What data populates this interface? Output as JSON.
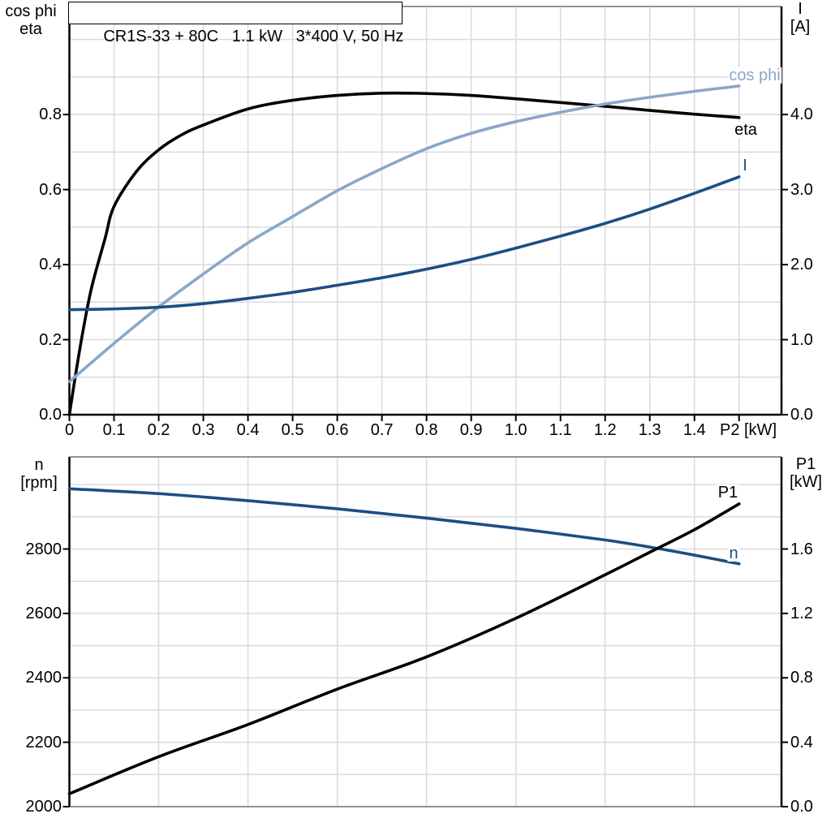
{
  "title_box": {
    "text": "CR1S-33 + 80C   1.1 kW   3*400 V, 50 Hz"
  },
  "colors": {
    "black": "#000000",
    "light_blue": "#8aa7c7",
    "dark_blue": "#1c4f82",
    "grid": "#d8dadc",
    "frame": "#8f9499"
  },
  "top_plot": {
    "left_axis_title_line1": "cos phi",
    "left_axis_title_line2": "eta",
    "right_axis_title_line1": "I",
    "right_axis_title_line2": "[A]",
    "x_axis_title": "P2 [kW]",
    "x_tick_labels": [
      "0",
      "0.1",
      "0.2",
      "0.3",
      "0.4",
      "0.5",
      "0.6",
      "0.7",
      "0.8",
      "0.9",
      "1.0",
      "1.1",
      "1.2",
      "1.3",
      "1.4"
    ],
    "left_tick_labels": [
      "0.0",
      "0.2",
      "0.4",
      "0.6",
      "0.8"
    ],
    "right_tick_labels": [
      "0.0",
      "1.0",
      "2.0",
      "3.0",
      "4.0"
    ],
    "curve_labels": {
      "cos_phi": "cos phi",
      "eta": "eta",
      "current": "I"
    }
  },
  "bottom_plot": {
    "left_axis_title_line1": "n",
    "left_axis_title_line2": "[rpm]",
    "right_axis_title_line1": "P1",
    "right_axis_title_line2": "[kW]",
    "left_tick_labels": [
      "2000",
      "2200",
      "2400",
      "2600",
      "2800"
    ],
    "right_tick_labels": [
      "0.0",
      "0.4",
      "0.8",
      "1.2",
      "1.6"
    ],
    "curve_labels": {
      "p1": "P1",
      "n": "n"
    }
  },
  "chart_data": [
    {
      "type": "line",
      "subplot": "top",
      "title": "CR1S-33 + 80C   1.1 kW   3*400 V, 50 Hz",
      "xlabel": "P2 [kW]",
      "ylabel_left": "cos phi / eta",
      "ylabel_right": "I [A]",
      "xlim": [
        0,
        1.595
      ],
      "ylim_left": [
        0,
        1.088
      ],
      "ylim_right": [
        0,
        5.44
      ],
      "x_ticks": [
        0,
        0.1,
        0.2,
        0.3,
        0.4,
        0.5,
        0.6,
        0.7,
        0.8,
        0.9,
        1.0,
        1.1,
        1.2,
        1.3,
        1.4
      ],
      "x_grid_step": 0.1,
      "x_grid_max": 1.5,
      "y_left_ticks": [
        0,
        0.2,
        0.4,
        0.6,
        0.8
      ],
      "y_right_ticks": [
        0,
        1,
        2,
        3,
        4
      ],
      "y_grid_step_left": 0.1,
      "grid": true,
      "legend_position": "inline-right",
      "series": [
        {
          "name": "eta",
          "axis": "left",
          "color": "black",
          "points": [
            [
              0,
              0
            ],
            [
              0.013,
              0.1
            ],
            [
              0.03,
              0.22
            ],
            [
              0.05,
              0.34
            ],
            [
              0.08,
              0.47
            ],
            [
              0.1,
              0.555
            ],
            [
              0.15,
              0.648
            ],
            [
              0.2,
              0.706
            ],
            [
              0.25,
              0.745
            ],
            [
              0.3,
              0.772
            ],
            [
              0.4,
              0.815
            ],
            [
              0.5,
              0.838
            ],
            [
              0.6,
              0.851
            ],
            [
              0.7,
              0.857
            ],
            [
              0.8,
              0.856
            ],
            [
              0.9,
              0.851
            ],
            [
              1.0,
              0.842
            ],
            [
              1.1,
              0.832
            ],
            [
              1.2,
              0.822
            ],
            [
              1.3,
              0.811
            ],
            [
              1.4,
              0.801
            ],
            [
              1.5,
              0.792
            ]
          ]
        },
        {
          "name": "cos phi",
          "axis": "left",
          "color": "light_blue",
          "points": [
            [
              0,
              0.088
            ],
            [
              0.1,
              0.19
            ],
            [
              0.2,
              0.287
            ],
            [
              0.3,
              0.375
            ],
            [
              0.4,
              0.458
            ],
            [
              0.5,
              0.528
            ],
            [
              0.6,
              0.597
            ],
            [
              0.7,
              0.656
            ],
            [
              0.8,
              0.709
            ],
            [
              0.9,
              0.75
            ],
            [
              1.0,
              0.781
            ],
            [
              1.1,
              0.806
            ],
            [
              1.2,
              0.828
            ],
            [
              1.3,
              0.846
            ],
            [
              1.4,
              0.862
            ],
            [
              1.5,
              0.876
            ]
          ]
        },
        {
          "name": "I",
          "axis": "right",
          "color": "dark_blue",
          "points": [
            [
              0,
              1.4
            ],
            [
              0.1,
              1.41
            ],
            [
              0.2,
              1.432
            ],
            [
              0.3,
              1.48
            ],
            [
              0.4,
              1.55
            ],
            [
              0.5,
              1.63
            ],
            [
              0.6,
              1.725
            ],
            [
              0.7,
              1.825
            ],
            [
              0.8,
              1.94
            ],
            [
              0.9,
              2.07
            ],
            [
              1.0,
              2.22
            ],
            [
              1.1,
              2.38
            ],
            [
              1.2,
              2.55
            ],
            [
              1.3,
              2.74
            ],
            [
              1.4,
              2.95
            ],
            [
              1.5,
              3.17
            ]
          ]
        }
      ]
    },
    {
      "type": "line",
      "subplot": "bottom",
      "xlabel": "",
      "ylabel_left": "n [rpm]",
      "ylabel_right": "P1 [kW]",
      "xlim": [
        0,
        1.595
      ],
      "ylim_left": [
        2000,
        3086
      ],
      "ylim_right": [
        0,
        2.172
      ],
      "x_grid_step": 0.2,
      "x_grid_max": 1.5,
      "y_left_ticks": [
        2000,
        2200,
        2400,
        2600,
        2800
      ],
      "y_right_ticks": [
        0,
        0.4,
        0.8,
        1.2,
        1.6
      ],
      "y_grid_step_left": 100,
      "grid": true,
      "legend_position": "inline-right",
      "series": [
        {
          "name": "n",
          "axis": "left",
          "color": "dark_blue",
          "points": [
            [
              0,
              2987
            ],
            [
              0.2,
              2972
            ],
            [
              0.4,
              2950
            ],
            [
              0.6,
              2925
            ],
            [
              0.8,
              2896
            ],
            [
              1.0,
              2864
            ],
            [
              1.2,
              2828
            ],
            [
              1.3,
              2806
            ],
            [
              1.4,
              2781
            ],
            [
              1.5,
              2754
            ]
          ]
        },
        {
          "name": "P1",
          "axis": "right",
          "color": "black",
          "points": [
            [
              0,
              0.08
            ],
            [
              0.2,
              0.31
            ],
            [
              0.4,
              0.51
            ],
            [
              0.6,
              0.73
            ],
            [
              0.8,
              0.93
            ],
            [
              1.0,
              1.17
            ],
            [
              1.2,
              1.44
            ],
            [
              1.3,
              1.58
            ],
            [
              1.4,
              1.72
            ],
            [
              1.5,
              1.88
            ]
          ]
        }
      ]
    }
  ]
}
